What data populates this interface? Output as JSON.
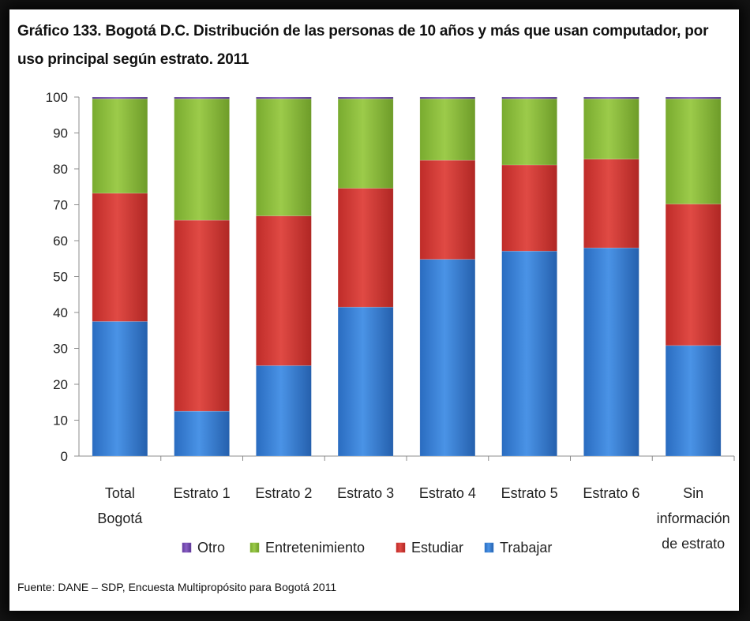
{
  "title": "Gráfico 133.  Bogotá D.C. Distribución de las personas de 10 años y más que usan computador, por uso principal según estrato. 2011",
  "source": "Fuente: DANE – SDP, Encuesta Multipropósito para Bogotá 2011",
  "colors": {
    "Otro": "#7a4fb4",
    "Entretenimiento": "#8dbd3e",
    "Estudiar": "#d43a36",
    "Trabajar": "#3a83d6"
  },
  "chart_data": {
    "type": "bar",
    "stacked": true,
    "title": "Gráfico 133.  Bogotá D.C. Distribución de las personas de 10 años y más que usan computador, por uso principal según estrato. 2011",
    "xlabel": "",
    "ylabel": "",
    "ylim": [
      0,
      100
    ],
    "yticks": [
      0,
      10,
      20,
      30,
      40,
      50,
      60,
      70,
      80,
      90,
      100
    ],
    "grid": false,
    "legend_position": "bottom",
    "categories": [
      [
        "Total",
        "Bogotá"
      ],
      [
        "Estrato 1"
      ],
      [
        "Estrato 2"
      ],
      [
        "Estrato 3"
      ],
      [
        "Estrato 4"
      ],
      [
        "Estrato 5"
      ],
      [
        "Estrato 6"
      ],
      [
        "Sin",
        "información",
        "de estrato"
      ]
    ],
    "series": [
      {
        "name": "Trabajar",
        "values": [
          37.5,
          12.5,
          25.2,
          41.5,
          54.8,
          57.1,
          58.0,
          30.8
        ]
      },
      {
        "name": "Estudiar",
        "values": [
          35.7,
          53.2,
          41.7,
          33.1,
          27.6,
          24.0,
          24.7,
          39.4
        ]
      },
      {
        "name": "Entretenimiento",
        "values": [
          26.3,
          33.8,
          32.6,
          24.9,
          17.1,
          18.4,
          16.8,
          29.3
        ]
      },
      {
        "name": "Otro",
        "values": [
          0.5,
          0.5,
          0.5,
          0.5,
          0.5,
          0.5,
          0.5,
          0.5
        ]
      }
    ],
    "legend_order": [
      "Otro",
      "Entretenimiento",
      "Estudiar",
      "Trabajar"
    ]
  }
}
